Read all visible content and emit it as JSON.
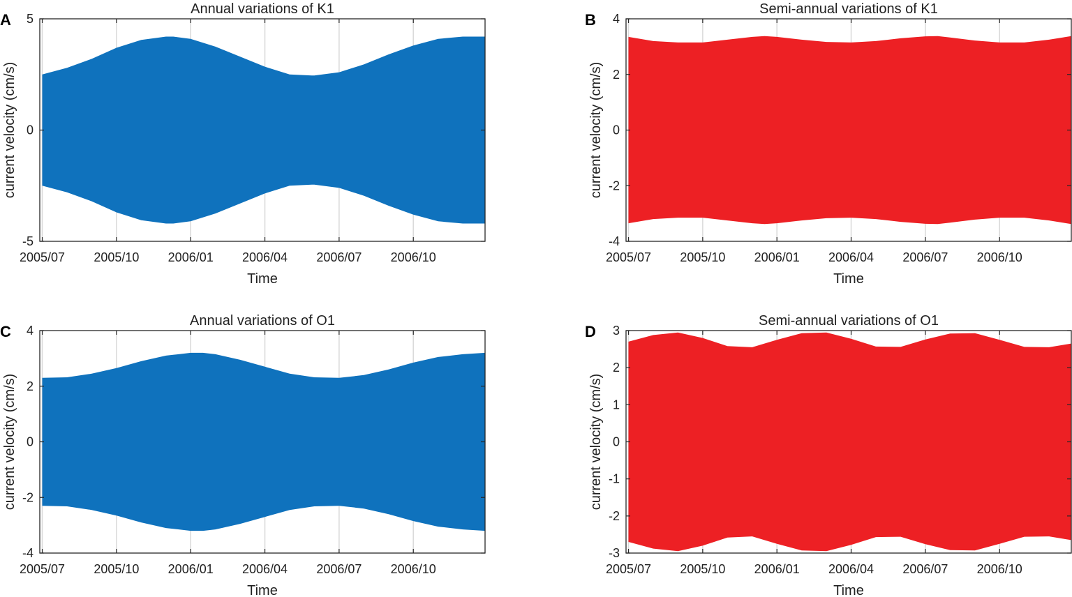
{
  "chart_data": [
    {
      "panel": "A",
      "type": "area",
      "title": "Annual variations of K1",
      "xlabel": "Time",
      "ylabel": "current velocity (cm/s)",
      "color": "#0f72bd",
      "x_ticks": [
        "2005/07",
        "2005/10",
        "2006/01",
        "2006/04",
        "2006/07",
        "2006/10"
      ],
      "x_tick_months": [
        0,
        3,
        6,
        9,
        12,
        15
      ],
      "x_range_months": [
        -0.1,
        17.9
      ],
      "ylim": [
        -5,
        5
      ],
      "y_ticks": [
        "-5",
        "0",
        "5"
      ],
      "y_tick_values": [
        -5,
        0,
        5
      ],
      "envelope": {
        "months": [
          0,
          1,
          2,
          3,
          4,
          5,
          5.3,
          6,
          7,
          8,
          9,
          10,
          10.9,
          11,
          12,
          13,
          14,
          15,
          16,
          17,
          17.9
        ],
        "upper": [
          2.5,
          2.8,
          3.2,
          3.7,
          4.05,
          4.2,
          4.2,
          4.1,
          3.75,
          3.3,
          2.85,
          2.5,
          2.45,
          2.45,
          2.6,
          2.95,
          3.4,
          3.8,
          4.1,
          4.2,
          4.2
        ]
      }
    },
    {
      "panel": "B",
      "type": "area",
      "title": "Semi-annual variations of K1",
      "xlabel": "Time",
      "ylabel": "current velocity (cm/s)",
      "color": "#ed2024",
      "x_ticks": [
        "2005/07",
        "2005/10",
        "2006/01",
        "2006/04",
        "2006/07",
        "2006/10"
      ],
      "x_tick_months": [
        0,
        3,
        6,
        9,
        12,
        15
      ],
      "x_range_months": [
        -0.1,
        17.9
      ],
      "ylim": [
        -4,
        4
      ],
      "y_ticks": [
        "-4",
        "-2",
        "0",
        "2",
        "4"
      ],
      "y_tick_values": [
        -4,
        -2,
        0,
        2,
        4
      ],
      "envelope": {
        "months": [
          0,
          1,
          2,
          3,
          4,
          5,
          5.5,
          6,
          7,
          8,
          9,
          10,
          11,
          12,
          12.5,
          13,
          14,
          15,
          16,
          17,
          17.9
        ],
        "upper": [
          3.35,
          3.2,
          3.15,
          3.15,
          3.25,
          3.35,
          3.38,
          3.35,
          3.25,
          3.17,
          3.15,
          3.2,
          3.3,
          3.37,
          3.38,
          3.33,
          3.22,
          3.15,
          3.15,
          3.25,
          3.38
        ]
      }
    },
    {
      "panel": "C",
      "type": "area",
      "title": "Annual variations of O1",
      "xlabel": "Time",
      "ylabel": "current velocity (cm/s)",
      "color": "#0f72bd",
      "x_ticks": [
        "2005/07",
        "2005/10",
        "2006/01",
        "2006/04",
        "2006/07",
        "2006/10"
      ],
      "x_tick_months": [
        0,
        3,
        6,
        9,
        12,
        15
      ],
      "x_range_months": [
        -0.1,
        17.9
      ],
      "ylim": [
        -4,
        4
      ],
      "y_ticks": [
        "-4",
        "-2",
        "0",
        "2",
        "4"
      ],
      "y_tick_values": [
        -4,
        -2,
        0,
        2,
        4
      ],
      "envelope": {
        "months": [
          0,
          1,
          2,
          3,
          4,
          5,
          6,
          6.5,
          7,
          8,
          9,
          10,
          11,
          12,
          13,
          14,
          15,
          16,
          17,
          17.9
        ],
        "upper": [
          2.3,
          2.32,
          2.45,
          2.65,
          2.9,
          3.1,
          3.2,
          3.2,
          3.15,
          2.95,
          2.7,
          2.45,
          2.32,
          2.3,
          2.4,
          2.6,
          2.85,
          3.05,
          3.15,
          3.2
        ]
      }
    },
    {
      "panel": "D",
      "type": "area",
      "title": "Semi-annual variations of O1",
      "xlabel": "Time",
      "ylabel": "current velocity (cm/s)",
      "color": "#ed2024",
      "x_ticks": [
        "2005/07",
        "2005/10",
        "2006/01",
        "2006/04",
        "2006/07",
        "2006/10"
      ],
      "x_tick_months": [
        0,
        3,
        6,
        9,
        12,
        15
      ],
      "x_range_months": [
        -0.1,
        17.9
      ],
      "ylim": [
        -3,
        3
      ],
      "y_ticks": [
        "-3",
        "-2",
        "-1",
        "0",
        "1",
        "2",
        "3"
      ],
      "y_tick_values": [
        -3,
        -2,
        -1,
        0,
        1,
        2,
        3
      ],
      "envelope": {
        "months": [
          0,
          1,
          2,
          3,
          4,
          5,
          6,
          7,
          8,
          9,
          10,
          11,
          12,
          13,
          14,
          15,
          16,
          17,
          17.9
        ],
        "upper": [
          2.7,
          2.88,
          2.95,
          2.8,
          2.58,
          2.55,
          2.75,
          2.93,
          2.95,
          2.78,
          2.57,
          2.56,
          2.76,
          2.92,
          2.93,
          2.75,
          2.56,
          2.55,
          2.65
        ]
      }
    }
  ]
}
